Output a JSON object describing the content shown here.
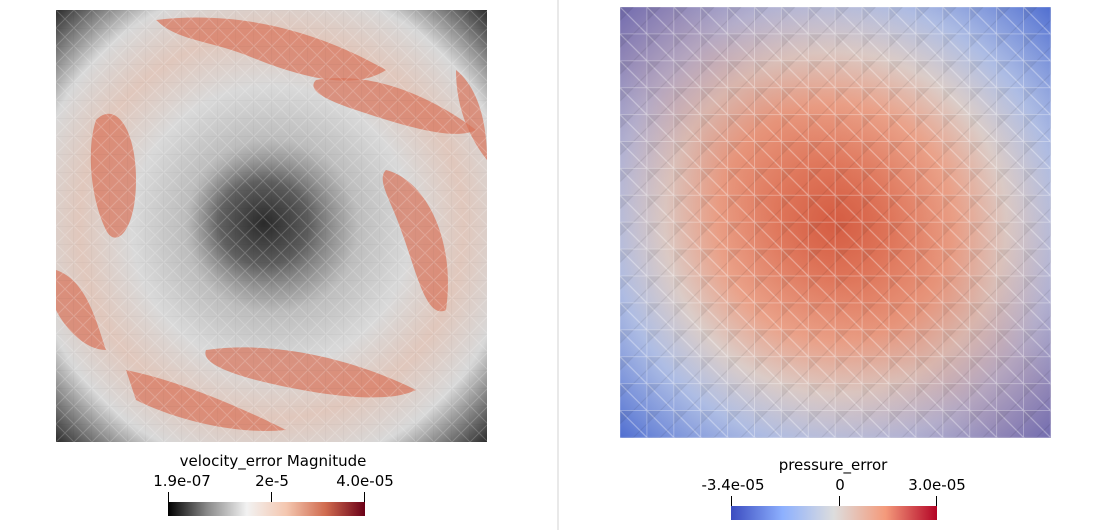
{
  "left_plot": {
    "colorbar_title": "velocity_error Magnitude",
    "ticks": [
      "1.9e-07",
      "2e-5",
      "4.0e-05"
    ],
    "colormap": [
      "#000000",
      "#8a8a8a",
      "#f2f2f2",
      "#f4c7b0",
      "#d06b4f",
      "#6b0017"
    ]
  },
  "right_plot": {
    "colorbar_title": "pressure_error",
    "ticks": [
      "-3.4e-05",
      "0",
      "3.0e-05"
    ],
    "colormap": [
      "#3b4cc0",
      "#8db0fe",
      "#dddddd",
      "#f49a7b",
      "#b40426"
    ]
  },
  "colors": {
    "velocity_high": "#d9735a",
    "velocity_low": "#3a3a3a",
    "velocity_mid": "#d4d4d4",
    "pressure_high": "#d9644a",
    "pressure_low": "#5a7bd8",
    "pressure_mid": "#d6d3d2"
  }
}
